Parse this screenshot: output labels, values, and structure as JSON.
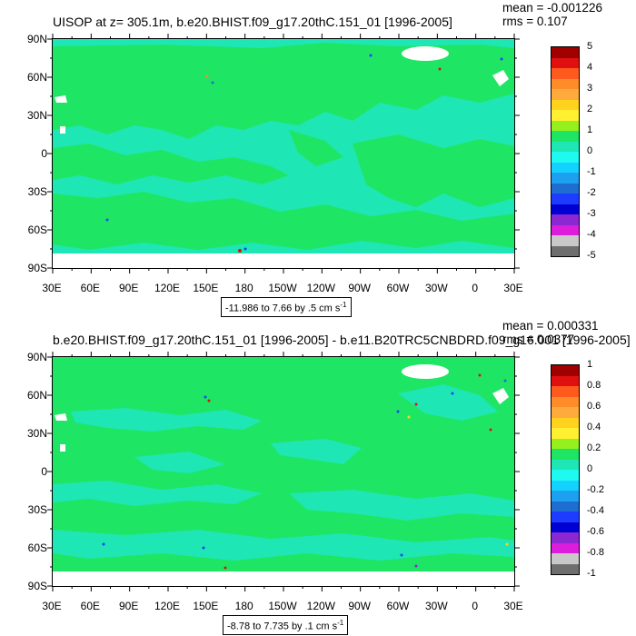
{
  "panels": [
    {
      "title": "UISOP at z= 305.1m, b.e20.BHIST.f09_g17.20thC.151_01 [1996-2005]",
      "mean": "mean = -0.001226",
      "rms": "rms = 0.107",
      "range_text": "-11.986 to 7.66 by .5 cm s",
      "range_unit_exp": "-1",
      "colorbar_labels": [
        "5",
        "4",
        "3",
        "2",
        "1",
        "0",
        "-1",
        "-2",
        "-3",
        "-4",
        "-5"
      ]
    },
    {
      "title": "b.e20.BHIST.f09_g17.20thC.151_01 [1996-2005] - b.e11.B20TRC5CNBDRD.f09_g16.001 [1996-2005]",
      "mean": "mean = 0.000331",
      "rms": "rms = 0.0377",
      "range_text": "-8.78 to 7.735 by .1 cm s",
      "range_unit_exp": "-1",
      "colorbar_labels": [
        "1",
        "0.8",
        "0.6",
        "0.4",
        "0.2",
        "0",
        "-0.2",
        "-0.4",
        "-0.6",
        "-0.8",
        "-1"
      ]
    }
  ],
  "axes": {
    "lat_labels": [
      "90N",
      "60N",
      "30N",
      "0",
      "30S",
      "60S",
      "90S"
    ],
    "lon_labels": [
      "30E",
      "60E",
      "90E",
      "120E",
      "150E",
      "180",
      "150W",
      "120W",
      "90W",
      "60W",
      "30W",
      "0",
      "30E"
    ]
  },
  "colorbar_colors": [
    "#a00000",
    "#e01010",
    "#ff5a1e",
    "#ff8c28",
    "#ffaa3c",
    "#ffd21e",
    "#fff032",
    "#96f01e",
    "#1ee664",
    "#1ee6b4",
    "#1efaf0",
    "#14d2ff",
    "#1ea0f0",
    "#1e6ed2",
    "#1e3cff",
    "#0000d2",
    "#8c28d2",
    "#dc1edc",
    "#c8c8c8",
    "#6e6e6e"
  ],
  "map_colors": {
    "primary_field": "#1ee6b4",
    "secondary_field": "#1ee664",
    "missing": "#ffffff"
  }
}
